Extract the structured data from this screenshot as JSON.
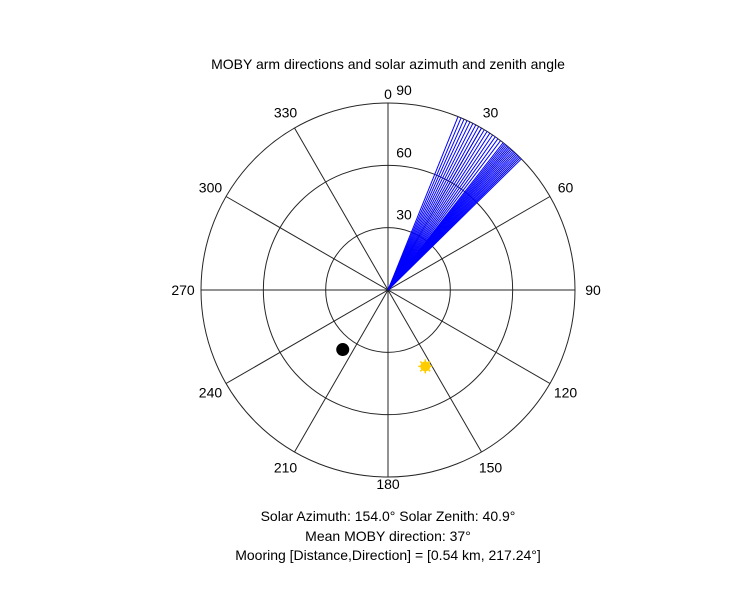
{
  "chart_data": {
    "type": "polar",
    "title": "MOBY arm directions and solar azimuth and zenith angle",
    "theta_zero": "top",
    "theta_direction": "clockwise",
    "theta_ticks": [
      0,
      30,
      60,
      90,
      120,
      150,
      180,
      210,
      240,
      270,
      300,
      330
    ],
    "theta_tick_labels": [
      "0",
      "30",
      "60",
      "90",
      "120",
      "150",
      "180",
      "210",
      "240",
      "270",
      "300",
      "330"
    ],
    "r_lim": [
      0,
      90
    ],
    "r_ticks": [
      30,
      60,
      90
    ],
    "r_tick_labels": [
      "30",
      "60",
      "90"
    ],
    "grid": true,
    "series": [
      {
        "kind": "lines",
        "color": "#0000ff",
        "r": 90,
        "theta_values": [
          22,
          23,
          24,
          25,
          26,
          27,
          28,
          29,
          30,
          31,
          32,
          33,
          34,
          35,
          36,
          37,
          38,
          38.5,
          39,
          39.5,
          40,
          40.5,
          41,
          41.5,
          42,
          42.5,
          43,
          43.5,
          44,
          44.5,
          45,
          45.5
        ]
      },
      {
        "kind": "marker",
        "marker": "sun",
        "color": "#ffcc00",
        "theta": 154.0,
        "r": 40.9
      },
      {
        "kind": "marker",
        "marker": "circle",
        "color": "#000000",
        "theta": 217.24,
        "r": 36
      }
    ]
  },
  "captions": {
    "solar": "Solar Azimuth: 154.0°   Solar Zenith: 40.9°",
    "mean_direction": "Mean MOBY direction: 37°",
    "mooring": "Mooring [Distance,Direction] = [0.54 km, 217.24°]"
  }
}
